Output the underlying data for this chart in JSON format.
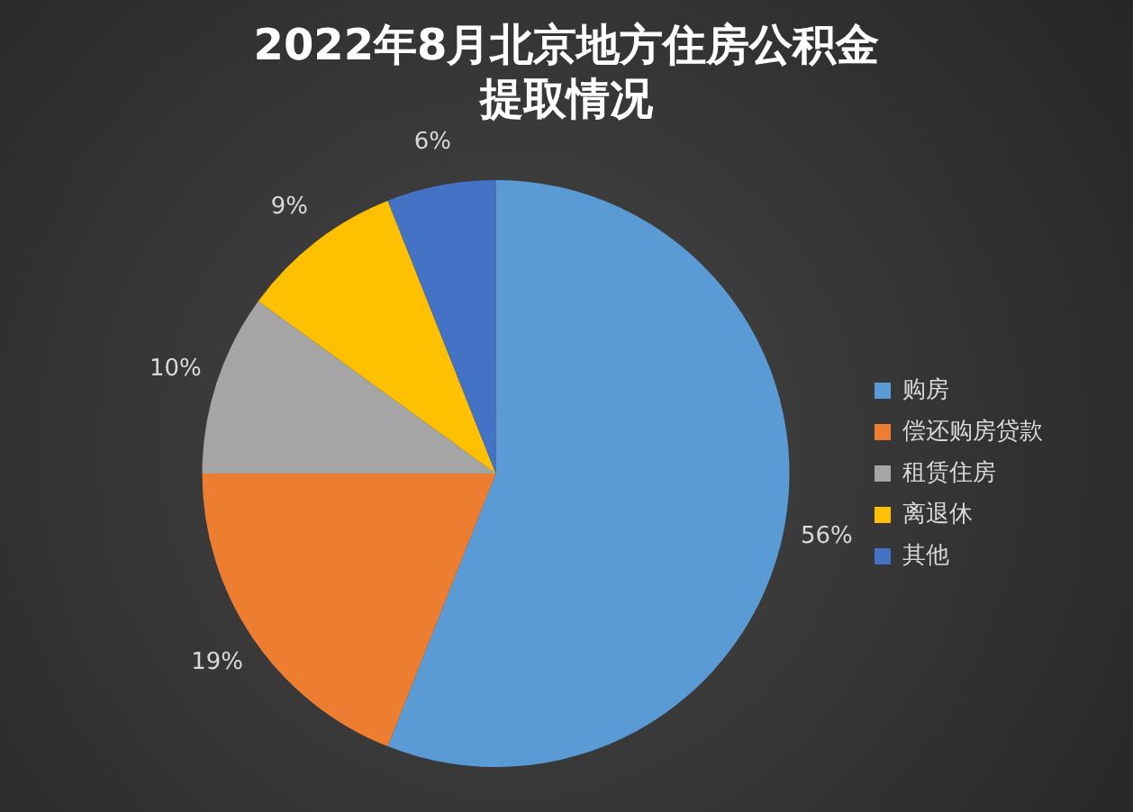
{
  "chart_data": {
    "type": "pie",
    "title": "2022年8月北京地方住房公积金提取情况",
    "categories": [
      "购房",
      "偿还购房贷款",
      "租赁住房",
      "离退休",
      "其他"
    ],
    "values": [
      56,
      19,
      10,
      9,
      6
    ],
    "value_labels": [
      "56%",
      "19%",
      "10%",
      "9%",
      "6%"
    ],
    "colors": [
      "#5b9bd5",
      "#ed7d31",
      "#a5a5a5",
      "#ffc000",
      "#4472c4"
    ],
    "legend": "right"
  }
}
